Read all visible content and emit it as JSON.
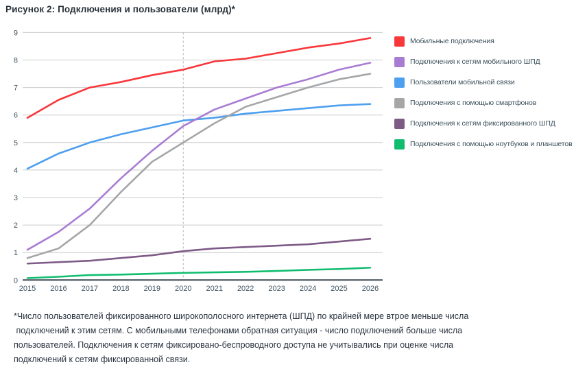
{
  "chart_data": {
    "type": "line",
    "title": "Рисунок 2: Подключения и пользователи (млрд)*",
    "x": [
      2015,
      2016,
      2017,
      2018,
      2019,
      2020,
      2021,
      2022,
      2023,
      2024,
      2025,
      2026
    ],
    "series": [
      {
        "name": "Мобильные подключения",
        "color": "#F8373B",
        "values": [
          5.9,
          6.55,
          7.0,
          7.2,
          7.45,
          7.65,
          7.95,
          8.05,
          8.25,
          8.45,
          8.6,
          8.8
        ]
      },
      {
        "name": "Подключения к сетям мобильного ШПД",
        "color": "#A97CD3",
        "values": [
          1.1,
          1.75,
          2.6,
          3.7,
          4.7,
          5.6,
          6.2,
          6.6,
          7.0,
          7.3,
          7.65,
          7.9
        ]
      },
      {
        "name": "Пользователи мобильной связи",
        "color": "#4D9FEF",
        "values": [
          4.05,
          4.6,
          5.0,
          5.3,
          5.55,
          5.8,
          5.9,
          6.05,
          6.15,
          6.25,
          6.35,
          6.4
        ]
      },
      {
        "name": "Подключения с помощью смартфонов",
        "color": "#A4A6A8",
        "values": [
          0.8,
          1.15,
          2.0,
          3.2,
          4.3,
          5.0,
          5.7,
          6.3,
          6.65,
          7.0,
          7.3,
          7.5
        ]
      },
      {
        "name": "Подключения к сетям фиксированного ШПД",
        "color": "#7E5A87",
        "values": [
          0.6,
          0.65,
          0.7,
          0.8,
          0.9,
          1.05,
          1.15,
          1.2,
          1.25,
          1.3,
          1.4,
          1.5
        ]
      },
      {
        "name": "Подключения с помощью ноутбуков и планшетов",
        "color": "#10BD6F",
        "values": [
          0.07,
          0.12,
          0.18,
          0.2,
          0.23,
          0.26,
          0.28,
          0.3,
          0.33,
          0.37,
          0.4,
          0.45
        ]
      }
    ],
    "xlabel": "",
    "ylabel": "",
    "ylim": [
      0,
      9
    ],
    "yticks": [
      0,
      1,
      2,
      3,
      4,
      5,
      6,
      7,
      8,
      9
    ],
    "annotation_x": 2020,
    "grid": true,
    "legend_position": "right"
  },
  "ui": {
    "gridline_color": "#C9CBCD",
    "baseline_color": "#3F4A52",
    "dashed_line_color": "#B3B6B8",
    "axis_text_color": "#3E5362"
  },
  "footnote": {
    "lines": [
      "*Число пользователей фиксированного широкополосного интернета (ШПД) по крайней мере втрое меньше числа",
      " подключений к этим сетям. С мобильными телефонами обратная ситуация - число подключений больше числа",
      "пользователей. Подключения к сетям фиксировано-беспроводного доступа не учитывались при оценке числа",
      "подключений к сетям фиксированной связи."
    ]
  }
}
